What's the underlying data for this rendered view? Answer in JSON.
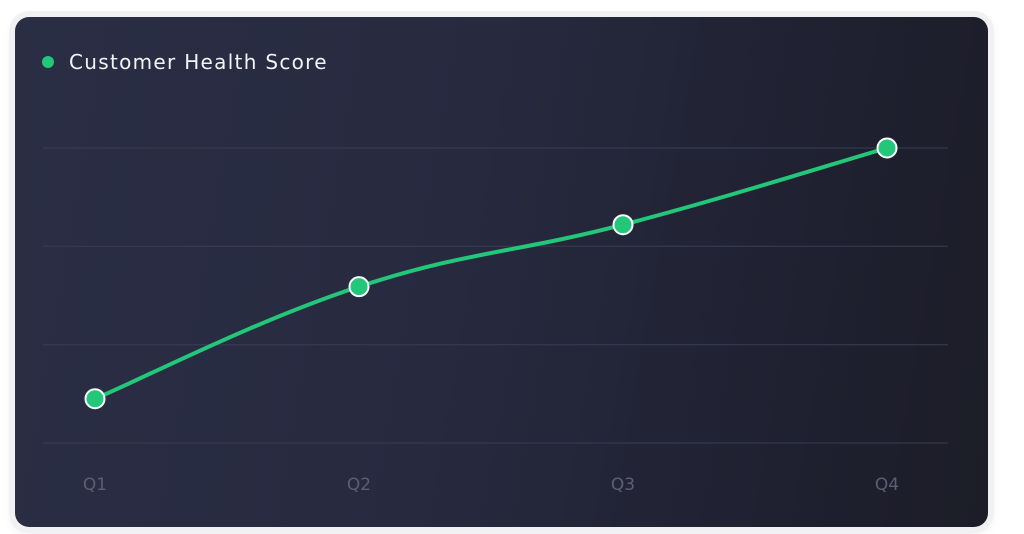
{
  "chart_data": {
    "type": "line",
    "title": "",
    "xlabel": "",
    "ylabel": "",
    "categories": [
      "Q1",
      "Q2",
      "Q3",
      "Q4"
    ],
    "series": [
      {
        "name": "Customer Health Score",
        "values": [
          15,
          53,
          74,
          100
        ],
        "color": "#22c77a"
      }
    ],
    "ylim": [
      0,
      100
    ],
    "y_gridlines": [
      0,
      33.3,
      66.7,
      100
    ],
    "y_tick_labels_shown": false,
    "grid": true,
    "legend": "top-left",
    "smooth": true
  },
  "colors": {
    "line": "#22c77a",
    "grid": "#3a3d52",
    "tick_label": "#5c5f73",
    "background": "#262940"
  }
}
